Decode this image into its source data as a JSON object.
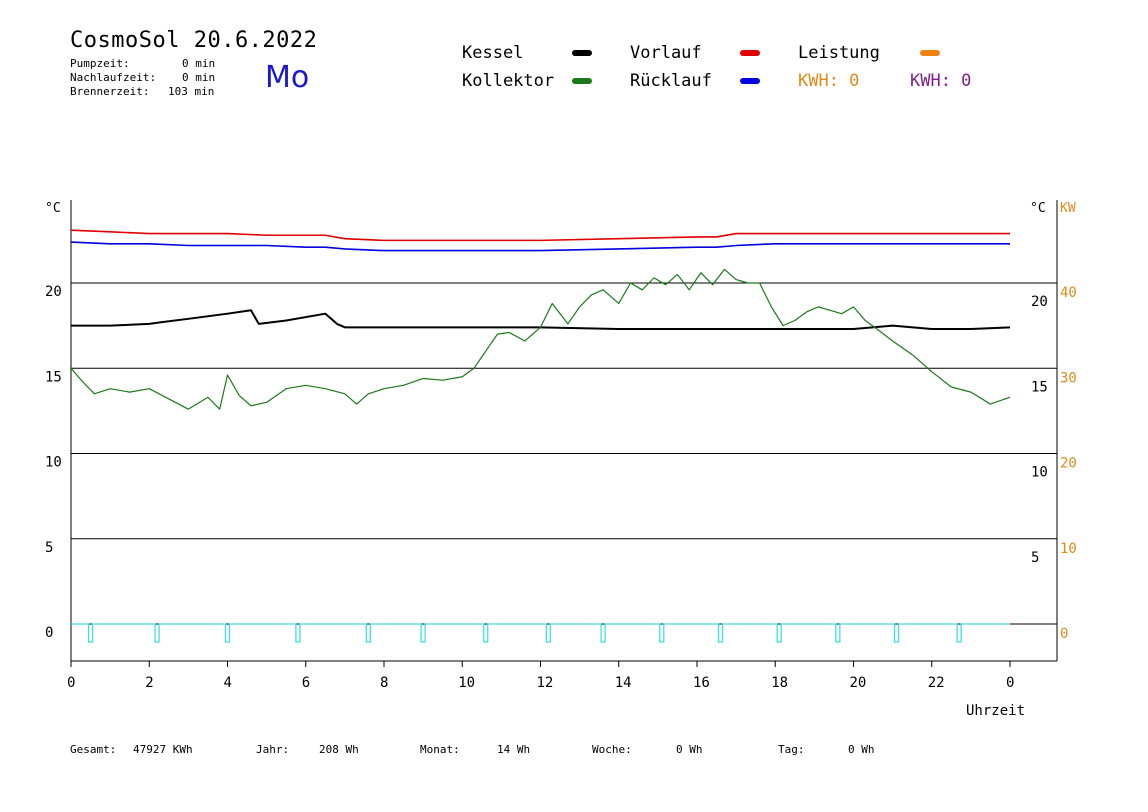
{
  "header": {
    "title": "CosmoSol 20.6.2022",
    "day": "Mo",
    "stats": [
      {
        "label": "Pumpzeit:",
        "value": "0 min"
      },
      {
        "label": "Nachlaufzeit:",
        "value": "0 min"
      },
      {
        "label": "Brennerzeit:",
        "value": "103 min"
      }
    ]
  },
  "legend": {
    "kessel": {
      "label": "Kessel",
      "color": "#000000"
    },
    "kollektor": {
      "label": "Kollektor",
      "color": "#1a7a1a"
    },
    "vorlauf": {
      "label": "Vorlauf",
      "color": "#e00000"
    },
    "ruecklauf": {
      "label": "Rücklauf",
      "color": "#0000e0"
    },
    "leistung": {
      "label": "Leistung",
      "color": "#f08010"
    },
    "kwh_orange": {
      "label": "KWH: 0",
      "color": "#e08a1a"
    },
    "kwh_purple": {
      "label": "KWH: 0",
      "color": "#80208a"
    }
  },
  "chart_data": {
    "type": "line",
    "xlabel": "Uhrzeit",
    "ylabel_left": "°C",
    "ylabel_right": "°C",
    "ylabel_right2": "KW",
    "x_ticks": [
      "0",
      "2",
      "4",
      "6",
      "8",
      "10",
      "12",
      "14",
      "16",
      "18",
      "20",
      "22",
      "0"
    ],
    "y_ticks_left": [
      "0",
      "5",
      "10",
      "15",
      "20"
    ],
    "y_ticks_right": [
      "5",
      "10",
      "15",
      "20"
    ],
    "y_ticks_kw": [
      "0",
      "10",
      "20",
      "30",
      "40"
    ],
    "xlim": [
      0,
      24
    ],
    "ylim": [
      -2,
      25
    ],
    "hlines": [
      0,
      5,
      10,
      15,
      20
    ],
    "series": [
      {
        "name": "Vorlauf",
        "color": "#e00000",
        "x": [
          0,
          1,
          2,
          3,
          4,
          5,
          6,
          6.5,
          7,
          8,
          10,
          12,
          14,
          16,
          16.5,
          17,
          18,
          20,
          22,
          24
        ],
        "y": [
          23.1,
          23.0,
          22.9,
          22.9,
          22.9,
          22.8,
          22.8,
          22.8,
          22.6,
          22.5,
          22.5,
          22.5,
          22.6,
          22.7,
          22.7,
          22.9,
          22.9,
          22.9,
          22.9,
          22.9
        ]
      },
      {
        "name": "Rücklauf",
        "color": "#0000e0",
        "x": [
          0,
          1,
          2,
          3,
          4,
          5,
          6,
          6.5,
          7,
          8,
          10,
          12,
          14,
          16,
          16.5,
          17,
          18,
          20,
          22,
          24
        ],
        "y": [
          22.4,
          22.3,
          22.3,
          22.2,
          22.2,
          22.2,
          22.1,
          22.1,
          22.0,
          21.9,
          21.9,
          21.9,
          22.0,
          22.1,
          22.1,
          22.2,
          22.3,
          22.3,
          22.3,
          22.3
        ]
      },
      {
        "name": "Kessel",
        "color": "#000000",
        "x": [
          0,
          1,
          2,
          2.3,
          3,
          4,
          4.6,
          4.8,
          5.5,
          6.5,
          6.8,
          7,
          8,
          10,
          12,
          14,
          16,
          18,
          20,
          21,
          22,
          23,
          24
        ],
        "y": [
          17.5,
          17.5,
          17.6,
          17.7,
          17.9,
          18.2,
          18.4,
          17.6,
          17.8,
          18.2,
          17.6,
          17.4,
          17.4,
          17.4,
          17.4,
          17.3,
          17.3,
          17.3,
          17.3,
          17.5,
          17.3,
          17.3,
          17.4
        ],
        "x2": [],
        "y2": []
      },
      {
        "name": "Kollektor",
        "color": "#1a7a1a",
        "x": [
          0,
          0.3,
          0.6,
          1,
          1.5,
          2,
          2.5,
          3,
          3.5,
          3.8,
          4,
          4.3,
          4.6,
          5,
          5.5,
          6,
          6.5,
          7,
          7.3,
          7.6,
          8,
          8.5,
          9,
          9.5,
          10,
          10.3,
          10.6,
          10.9,
          11.2,
          11.6,
          12,
          12.3,
          12.7,
          13,
          13.3,
          13.6,
          14,
          14.3,
          14.6,
          14.9,
          15.2,
          15.5,
          15.8,
          16.1,
          16.4,
          16.7,
          17,
          17.3,
          17.6,
          17.9,
          18.2,
          18.5,
          18.8,
          19.1,
          19.4,
          19.7,
          20,
          20.3,
          20.6,
          21,
          21.5,
          22,
          22.5,
          23,
          23.5,
          24
        ],
        "y": [
          15,
          14.2,
          13.5,
          13.8,
          13.6,
          13.8,
          13.2,
          12.6,
          13.3,
          12.6,
          14.6,
          13.4,
          12.8,
          13.0,
          13.8,
          14.0,
          13.8,
          13.5,
          12.9,
          13.5,
          13.8,
          14.0,
          14.4,
          14.3,
          14.5,
          15,
          16,
          17.0,
          17.1,
          16.6,
          17.4,
          18.8,
          17.6,
          18.6,
          19.3,
          19.6,
          18.8,
          20.0,
          19.6,
          20.3,
          19.9,
          20.5,
          19.6,
          20.6,
          19.9,
          20.8,
          20.2,
          20.0,
          20.0,
          18.6,
          17.5,
          17.8,
          18.3,
          18.6,
          18.4,
          18.2,
          18.6,
          17.8,
          17.3,
          16.6,
          15.8,
          14.8,
          13.9,
          13.6,
          12.9,
          13.3
        ]
      },
      {
        "name": "Leistung",
        "color": "#40e0e0",
        "x": [
          0,
          24
        ],
        "y": [
          0,
          0
        ],
        "pulses_x": [
          0.5,
          2.2,
          4.0,
          5.8,
          7.6,
          9.0,
          10.6,
          12.2,
          13.6,
          15.1,
          16.6,
          18.1,
          19.6,
          21.1,
          22.7
        ]
      }
    ]
  },
  "footer": {
    "items": [
      {
        "label": "Gesamt:",
        "value": "47927 KWh"
      },
      {
        "label": "Jahr:",
        "value": "208 Wh"
      },
      {
        "label": "Monat:",
        "value": "14 Wh"
      },
      {
        "label": "Woche:",
        "value": "0 Wh"
      },
      {
        "label": "Tag:",
        "value": "0 Wh"
      }
    ]
  }
}
